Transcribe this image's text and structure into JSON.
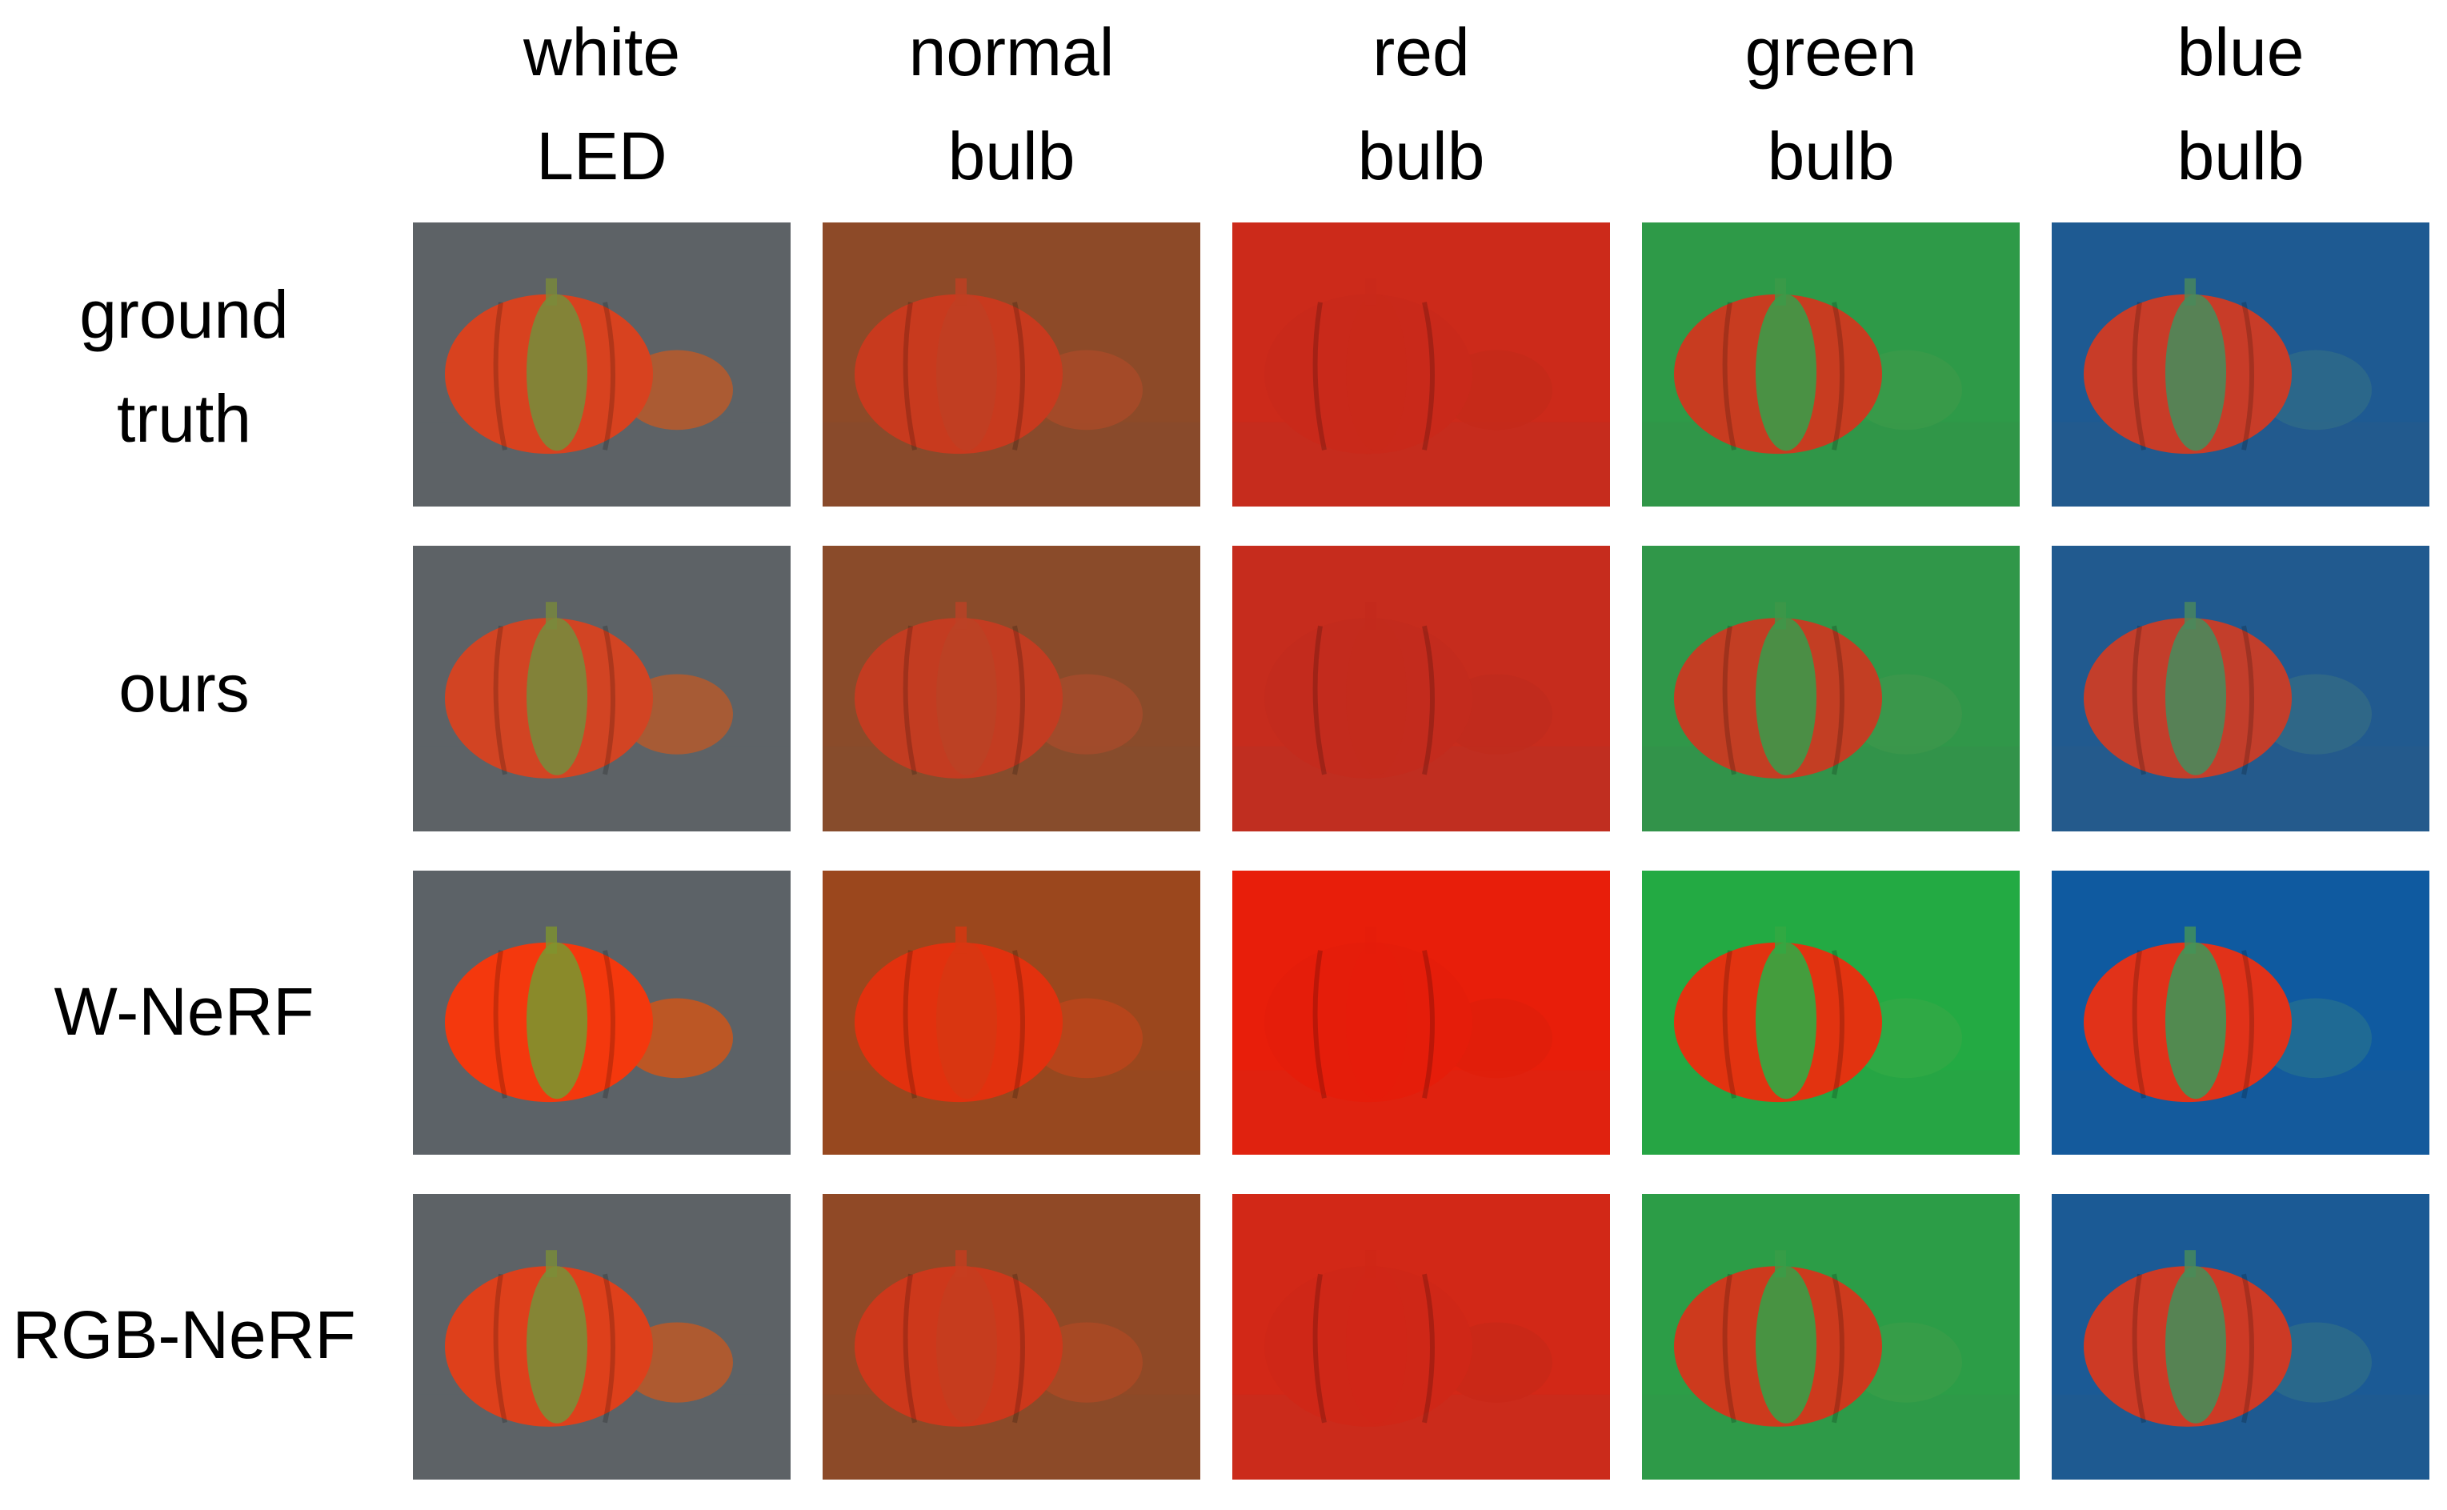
{
  "columns": [
    {
      "line1": "white",
      "line2": "LED",
      "bg": "#5d6266",
      "fruit": "#d8421f",
      "mid": "#7a8b3a",
      "small": "#b85a2a"
    },
    {
      "line1": "normal",
      "line2": "bulb",
      "bg": "#8d4a28",
      "fruit": "#c83a1e",
      "mid": "#c03f22",
      "small": "#a84a28"
    },
    {
      "line1": "red",
      "line2": "bulb",
      "bg": "#cc2a1a",
      "fruit": "#c9291a",
      "mid": "#c9291a",
      "small": "#c42a1a"
    },
    {
      "line1": "green",
      "line2": "bulb",
      "bg": "#2e9a48",
      "fruit": "#c83c20",
      "mid": "#3c9a48",
      "small": "#3a9a4a"
    },
    {
      "line1": "blue",
      "line2": "bulb",
      "bg": "#1e5a92",
      "fruit": "#c83c28",
      "mid": "#4a8a5a",
      "small": "#2e6a88"
    }
  ],
  "rows": [
    {
      "line1": "ground",
      "line2": "truth"
    },
    {
      "line1": "ours",
      "line2": ""
    },
    {
      "line1": "W-NeRF",
      "line2": ""
    },
    {
      "line1": "RGB-NeRF",
      "line2": ""
    }
  ]
}
